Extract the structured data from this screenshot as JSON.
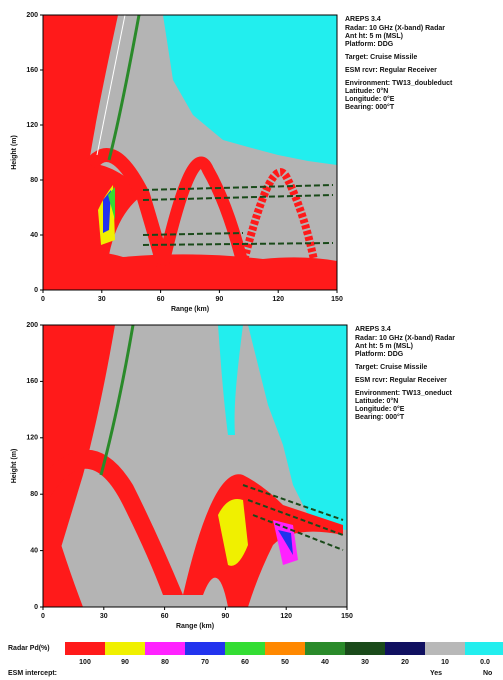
{
  "chart_data": [
    {
      "type": "coverage",
      "xlabel": "Range (km)",
      "ylabel": "Height (m)",
      "xlim": [
        0,
        150
      ],
      "ylim": [
        0,
        200
      ],
      "xticks": [
        0,
        30,
        60,
        90,
        120,
        150
      ],
      "yticks": [
        0,
        40,
        80,
        120,
        160,
        200
      ],
      "info": [
        "AREPS 3.4",
        "Radar: 10 GHz (X-band) Radar",
        "Ant ht: 5 m (MSL)",
        "Platform: DDG",
        "Target: Cruise Missile",
        "ESM rcvr: Regular Receiver",
        "Environment: TW13_doubleduct",
        "Latitude: 0°N",
        "Longitude: 0°E",
        "Bearing: 000°T"
      ]
    },
    {
      "type": "coverage",
      "xlabel": "Range (km)",
      "ylabel": "Height (m)",
      "xlim": [
        0,
        150
      ],
      "ylim": [
        0,
        200
      ],
      "xticks": [
        0,
        30,
        60,
        90,
        120,
        150
      ],
      "yticks": [
        0,
        40,
        80,
        120,
        160,
        200
      ],
      "info": [
        "AREPS 3.4",
        "Radar: 10 GHz (X-band) Radar",
        "Ant ht: 5 m (MSL)",
        "Platform: DDG",
        "Target: Cruise Missile",
        "ESM rcvr: Regular Receiver",
        "Environment: TW13_oneduct",
        "Latitude: 0°N",
        "Longitude: 0°E",
        "Bearing: 000°T"
      ]
    }
  ],
  "legend": {
    "title": "Radar Pd(%)",
    "items": [
      {
        "label": "100",
        "color": "#ff1a1a"
      },
      {
        "label": "90",
        "color": "#f0f000"
      },
      {
        "label": "80",
        "color": "#ff22ff"
      },
      {
        "label": "70",
        "color": "#2233ee"
      },
      {
        "label": "60",
        "color": "#33dd33"
      },
      {
        "label": "50",
        "color": "#ff8800"
      },
      {
        "label": "40",
        "color": "#2a8a2a"
      },
      {
        "label": "30",
        "color": "#1a4a1a"
      },
      {
        "label": "20",
        "color": "#101060"
      },
      {
        "label": "10",
        "color": "#b8b8b8"
      },
      {
        "label": "0.0",
        "color": "#22eeee"
      }
    ],
    "esm_label": "ESM intercept:",
    "yes": "Yes",
    "no": "No"
  }
}
